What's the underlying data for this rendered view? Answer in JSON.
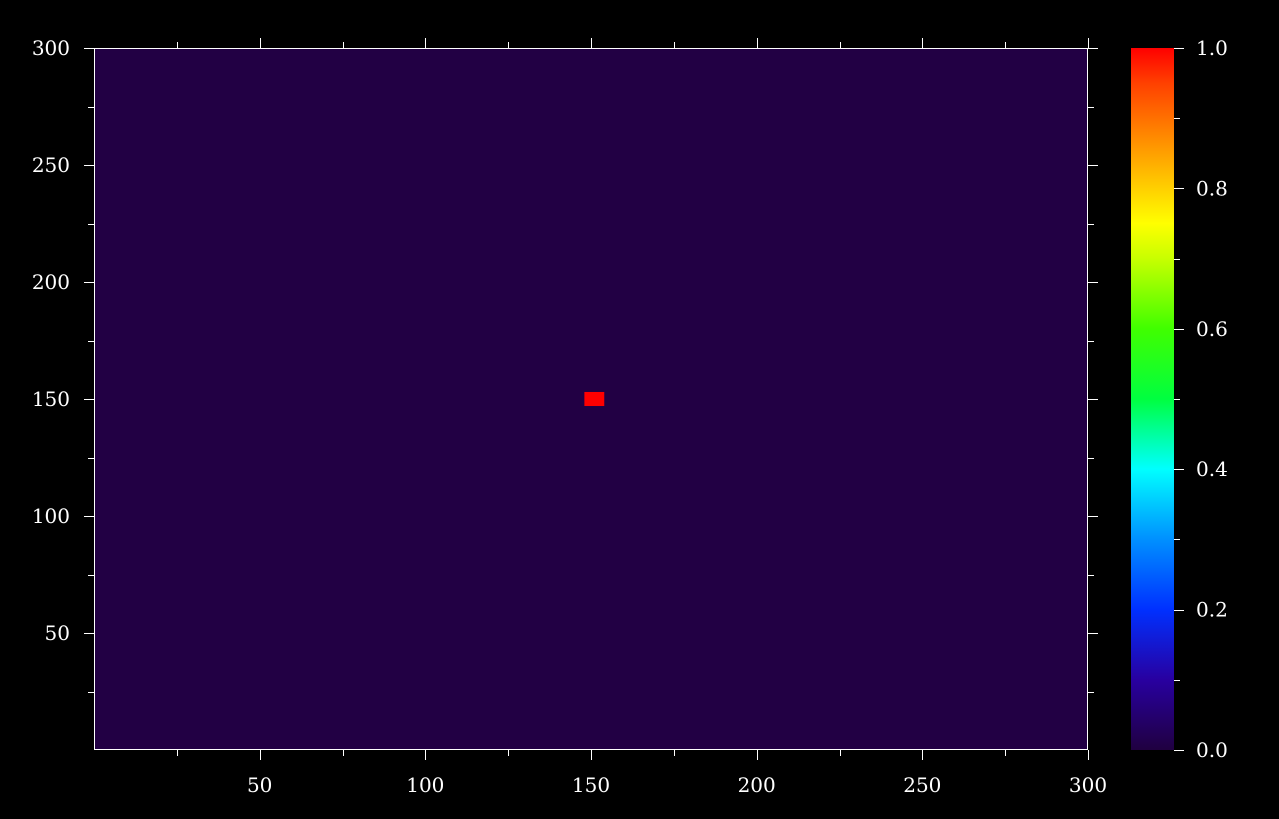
{
  "chart_data": {
    "type": "heatmap",
    "title": "",
    "xlabel": "",
    "ylabel": "",
    "xlim": [
      0,
      300
    ],
    "ylim": [
      0,
      300
    ],
    "x_ticks": [
      50,
      100,
      150,
      200,
      250,
      300
    ],
    "y_ticks": [
      50,
      100,
      150,
      200,
      250,
      300
    ],
    "x_tick_labels": [
      "50",
      "100",
      "150",
      "200",
      "250",
      "300"
    ],
    "y_tick_labels": [
      "50",
      "100",
      "150",
      "200",
      "250",
      "300"
    ],
    "x_minor_step": 25,
    "y_minor_step": 25,
    "background_value": 0.0,
    "hotspots": [
      {
        "x": [
          148,
          154
        ],
        "y": [
          147,
          153
        ],
        "value": 1.0
      }
    ],
    "colorbar": {
      "range": [
        0.0,
        1.0
      ],
      "ticks": [
        0.0,
        0.2,
        0.4,
        0.6,
        0.8,
        1.0
      ],
      "tick_labels": [
        "0.0",
        "0.2",
        "0.4",
        "0.6",
        "0.8",
        "1.0"
      ],
      "minor_step": 0.1,
      "colormap": [
        {
          "value": 0.0,
          "color": "#200040"
        },
        {
          "value": 0.1,
          "color": "#2800a0"
        },
        {
          "value": 0.2,
          "color": "#0030ff"
        },
        {
          "value": 0.3,
          "color": "#0090ff"
        },
        {
          "value": 0.4,
          "color": "#00ffff"
        },
        {
          "value": 0.5,
          "color": "#00ff40"
        },
        {
          "value": 0.6,
          "color": "#40ff00"
        },
        {
          "value": 0.7,
          "color": "#c8ff00"
        },
        {
          "value": 0.75,
          "color": "#ffff00"
        },
        {
          "value": 0.85,
          "color": "#ffa000"
        },
        {
          "value": 0.95,
          "color": "#ff4000"
        },
        {
          "value": 1.0,
          "color": "#ff0000"
        }
      ]
    },
    "colors": {
      "background": "#000000",
      "axes": "#ffffff",
      "field": "#220044",
      "hotspot": "#ff0000"
    }
  }
}
